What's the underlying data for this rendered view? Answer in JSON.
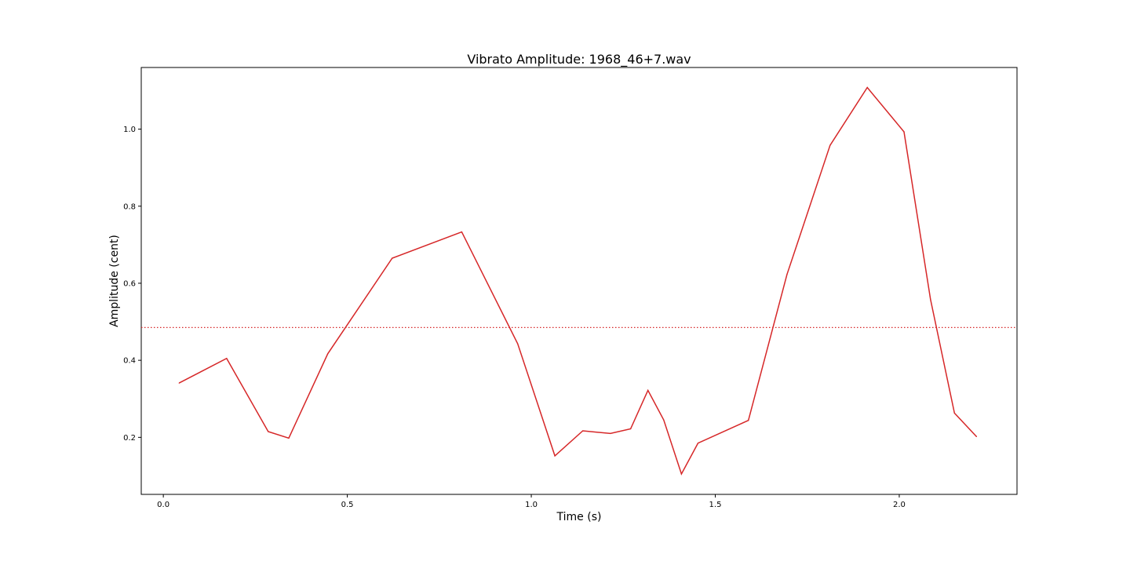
{
  "chart_data": {
    "type": "line",
    "title": "Vibrato Amplitude: 1968_46+7.wav",
    "xlabel": "Time (s)",
    "ylabel": "Amplitude (cent)",
    "xlim": [
      -0.06,
      2.32
    ],
    "ylim": [
      0.052,
      1.16
    ],
    "xticks": [
      0.0,
      0.5,
      1.0,
      1.5,
      2.0
    ],
    "xtick_labels": [
      "0.0",
      "0.5",
      "1.0",
      "1.5",
      "2.0"
    ],
    "yticks": [
      0.2,
      0.4,
      0.6,
      0.8,
      1.0
    ],
    "ytick_labels": [
      "0.2",
      "0.4",
      "0.6",
      "0.8",
      "1.0"
    ],
    "grid": false,
    "color": "#d62728",
    "series": [
      {
        "x": [
          0.043,
          0.172,
          0.285,
          0.341,
          0.447,
          0.622,
          0.811,
          0.963,
          1.064,
          1.14,
          1.215,
          1.27,
          1.317,
          1.36,
          1.408,
          1.453,
          1.59,
          1.695,
          1.812,
          1.913,
          2.013,
          2.085,
          2.15,
          2.21
        ],
        "y": [
          0.341,
          0.405,
          0.215,
          0.198,
          0.417,
          0.665,
          0.733,
          0.443,
          0.152,
          0.217,
          0.21,
          0.222,
          0.322,
          0.245,
          0.105,
          0.185,
          0.244,
          0.623,
          0.958,
          1.108,
          0.993,
          0.558,
          0.263,
          0.202
        ]
      }
    ],
    "reference_line": {
      "y": 0.485,
      "style": "dotted"
    }
  }
}
